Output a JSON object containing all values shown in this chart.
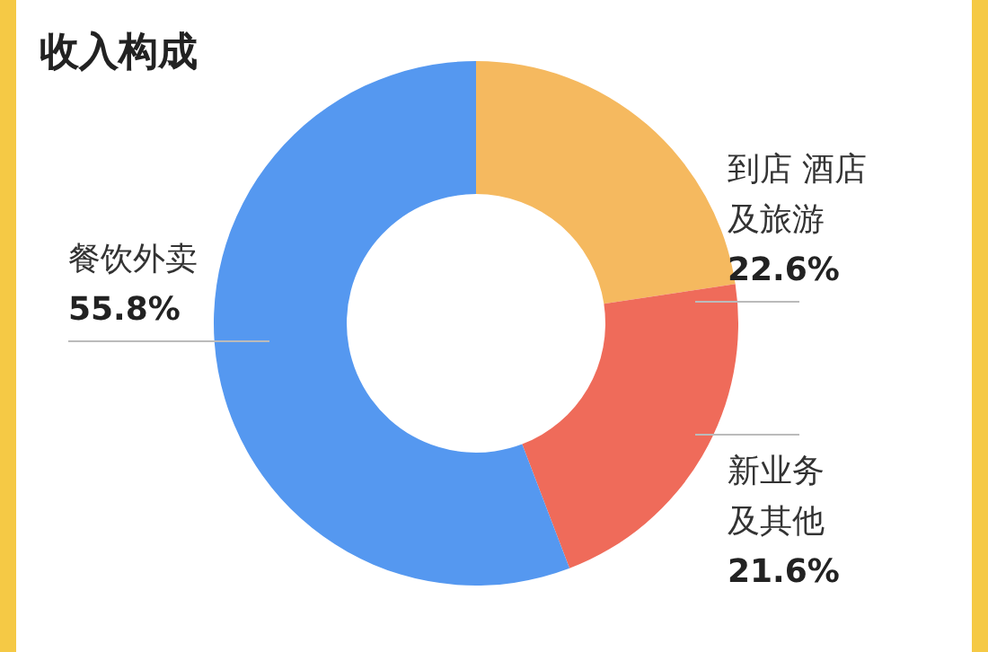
{
  "chart_data": {
    "type": "donut",
    "title": "收入构成",
    "categories": [
      "到店 酒店及旅游",
      "新业务及其他",
      "餐饮外卖"
    ],
    "values": [
      22.6,
      21.6,
      55.8
    ],
    "value_labels": [
      "22.6%",
      "21.6%",
      "55.8%"
    ],
    "colors": [
      "#f5b95f",
      "#ef6b5a",
      "#5598f0"
    ]
  }
}
